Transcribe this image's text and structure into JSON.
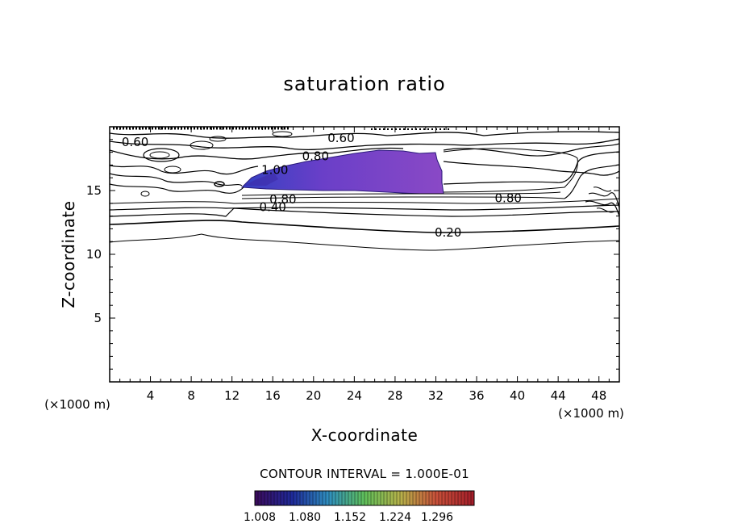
{
  "chart_data": {
    "type": "contour",
    "title": "saturation ratio",
    "xlabel": "X-coordinate",
    "ylabel": "Z-coordinate",
    "x_unit": "(×1000 m)",
    "y_unit": "(×1000 m)",
    "xlim": [
      0,
      50
    ],
    "ylim": [
      0,
      20
    ],
    "x_ticks": [
      4,
      8,
      12,
      16,
      20,
      24,
      28,
      32,
      36,
      40,
      44,
      48
    ],
    "y_ticks": [
      5,
      10,
      15
    ],
    "contour_interval_text": "CONTOUR INTERVAL = 1.000E-01",
    "contour_labels": [
      {
        "text": "0.60",
        "x": 2.5,
        "z": 18.8
      },
      {
        "text": "0.60",
        "x": 22.7,
        "z": 19.1
      },
      {
        "text": "0.80",
        "x": 20.2,
        "z": 17.7
      },
      {
        "text": "1.00",
        "x": 16.2,
        "z": 16.6
      },
      {
        "text": "0.80",
        "x": 17.0,
        "z": 14.3
      },
      {
        "text": "0.40",
        "x": 16.0,
        "z": 13.7
      },
      {
        "text": "0.80",
        "x": 39.1,
        "z": 14.4
      },
      {
        "text": "0.20",
        "x": 33.2,
        "z": 11.7
      }
    ],
    "colorbar": {
      "labels": [
        "1.008",
        "1.080",
        "1.152",
        "1.224",
        "1.296"
      ],
      "range": [
        1.008,
        1.33
      ],
      "colormap": [
        "#3a0c5e",
        "#1f2a9a",
        "#2f8fbf",
        "#5fbf5a",
        "#b7b24a",
        "#c9503a",
        "#a51f2a"
      ]
    },
    "supersaturated_region": {
      "fill_color": "#6a3fc8",
      "approx_extent_x": [
        13,
        32.5
      ],
      "approx_extent_z": [
        14.6,
        18
      ]
    }
  }
}
